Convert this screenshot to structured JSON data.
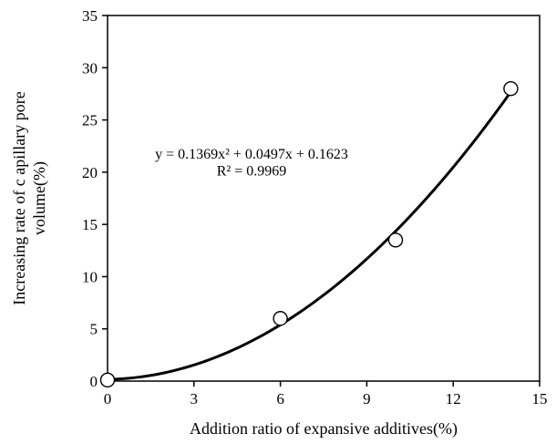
{
  "chart_data": {
    "type": "scatter",
    "title": "",
    "xlabel": "Addition ratio of expansive additives(%)",
    "ylabel_lines": [
      "Increasing rate of c apillary pore",
      "volume(%)"
    ],
    "xlim": [
      0,
      15
    ],
    "ylim": [
      0,
      35
    ],
    "xticks": [
      "0",
      "3",
      "6",
      "9",
      "12",
      "15"
    ],
    "yticks": [
      "0",
      "5",
      "10",
      "15",
      "20",
      "25",
      "30",
      "35"
    ],
    "grid": false,
    "series": [
      {
        "marker": "open-circle",
        "x": [
          0,
          6,
          10,
          14
        ],
        "y": [
          0.1,
          6.0,
          13.5,
          28.0
        ]
      }
    ],
    "trendline": {
      "type": "polynomial",
      "coefficients": [
        0.1369,
        0.0497,
        0.1623
      ],
      "x_range": [
        0,
        14
      ]
    },
    "annotations": {
      "equation": "y = 0.1369x² + 0.0497x + 0.1623",
      "r_squared": "R² = 0.9969"
    }
  }
}
